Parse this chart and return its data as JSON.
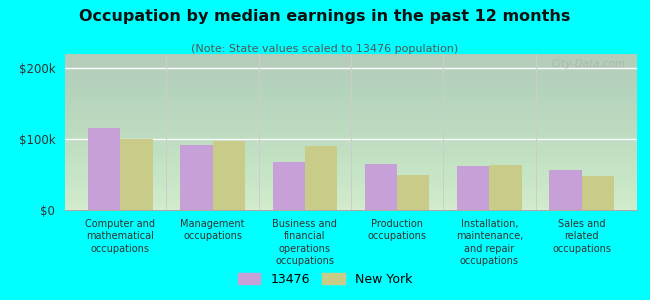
{
  "title": "Occupation by median earnings in the past 12 months",
  "subtitle": "(Note: State values scaled to 13476 population)",
  "categories": [
    "Computer and\nmathematical\noccupations",
    "Management\noccupations",
    "Business and\nfinancial\noperations\noccupations",
    "Production\noccupations",
    "Installation,\nmaintenance,\nand repair\noccupations",
    "Sales and\nrelated\noccupations"
  ],
  "values_13476": [
    115000,
    92000,
    68000,
    65000,
    62000,
    56000
  ],
  "values_ny": [
    100000,
    97000,
    90000,
    50000,
    64000,
    48000
  ],
  "color_13476": "#c8a0d8",
  "color_ny": "#c8cc88",
  "ylim": [
    0,
    220000
  ],
  "yticks": [
    0,
    100000,
    200000
  ],
  "ytick_labels": [
    "$0",
    "$100k",
    "$200k"
  ],
  "legend_13476": "13476",
  "legend_ny": "New York",
  "background_color": "#00ffff",
  "watermark": "City-Data.com",
  "bar_width": 0.35
}
